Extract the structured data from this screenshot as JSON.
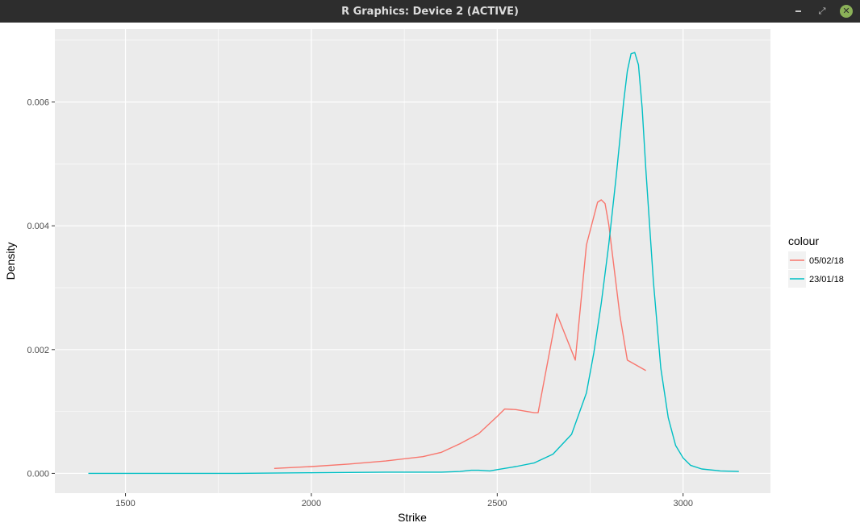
{
  "window": {
    "title": "R Graphics: Device 2 (ACTIVE)"
  },
  "colors": {
    "titlebar_bg": "#2d2d2d",
    "panel_bg": "#ebebeb",
    "gridline": "#ffffff",
    "series_1": "#f8766d",
    "series_2": "#00bfc4",
    "close_button": "#8bb158"
  },
  "icons": {
    "minimize": "minimize-icon",
    "maximize": "maximize-icon",
    "close": "close-icon"
  },
  "chart_data": {
    "type": "line",
    "title": "",
    "xlabel": "Strike",
    "ylabel": "Density",
    "xlim": [
      1310,
      3235
    ],
    "ylim": [
      -0.00032,
      0.00718
    ],
    "x_ticks": [
      1500,
      2000,
      2500,
      3000
    ],
    "x_tick_labels": [
      "1500",
      "2000",
      "2500",
      "3000"
    ],
    "y_ticks": [
      0,
      0.002,
      0.004,
      0.006
    ],
    "y_tick_labels": [
      "0.000",
      "0.002",
      "0.004",
      "0.006"
    ],
    "grid": true,
    "legend": {
      "title": "colour",
      "placement": "right",
      "entries": [
        "05/02/18",
        "23/01/18"
      ]
    },
    "series": [
      {
        "name": "05/02/18",
        "color": "#f8766d",
        "x": [
          1900,
          2000,
          2100,
          2200,
          2300,
          2350,
          2400,
          2450,
          2500,
          2520,
          2550,
          2600,
          2610,
          2660,
          2710,
          2740,
          2770,
          2780,
          2790,
          2800,
          2830,
          2850,
          2900
        ],
        "y": [
          8e-05,
          0.00011,
          0.00015,
          0.0002,
          0.00027,
          0.00034,
          0.00048,
          0.00064,
          0.00092,
          0.00104,
          0.00103,
          0.00098,
          0.00098,
          0.00258,
          0.00183,
          0.00369,
          0.00438,
          0.00442,
          0.00436,
          0.00402,
          0.00255,
          0.00183,
          0.00166
        ]
      },
      {
        "name": "23/01/18",
        "color": "#00bfc4",
        "x": [
          1400,
          1600,
          1800,
          2000,
          2200,
          2350,
          2400,
          2430,
          2450,
          2480,
          2500,
          2550,
          2600,
          2650,
          2700,
          2740,
          2760,
          2780,
          2800,
          2820,
          2840,
          2850,
          2860,
          2870,
          2880,
          2890,
          2900,
          2920,
          2940,
          2960,
          2980,
          3000,
          3020,
          3050,
          3100,
          3150
        ],
        "y": [
          0.0,
          0.0,
          0.0,
          1e-05,
          2e-05,
          2e-05,
          3e-05,
          5e-05,
          5e-05,
          4e-05,
          6e-05,
          0.00011,
          0.00017,
          0.00031,
          0.00063,
          0.0013,
          0.00195,
          0.00275,
          0.0037,
          0.0048,
          0.006,
          0.0065,
          0.00678,
          0.0068,
          0.0066,
          0.0059,
          0.0049,
          0.0031,
          0.0017,
          0.0009,
          0.00045,
          0.00025,
          0.00013,
          7e-05,
          4e-05,
          3e-05
        ]
      }
    ]
  }
}
